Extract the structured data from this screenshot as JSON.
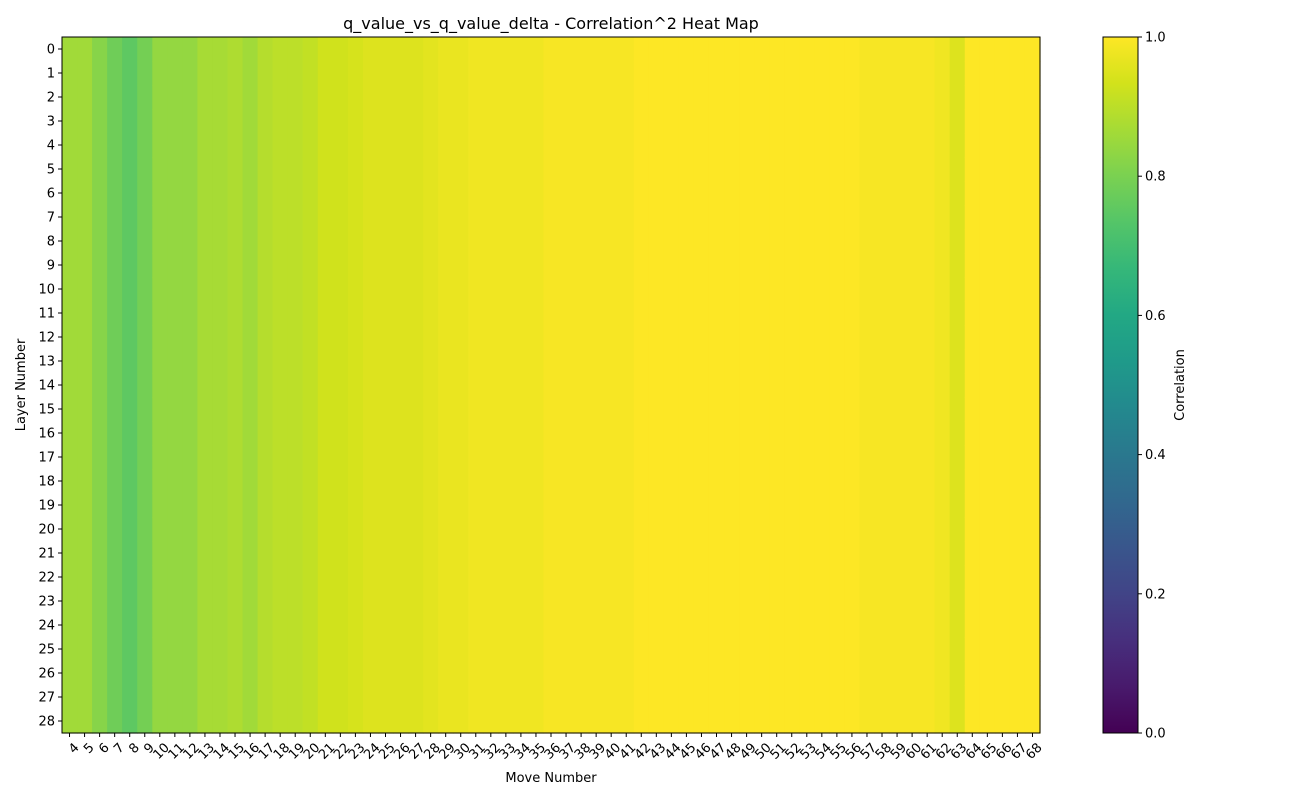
{
  "chart_data": {
    "type": "heatmap",
    "title": "q_value_vs_q_value_delta - Correlation^2 Heat Map",
    "xlabel": "Move Number",
    "ylabel": "Layer Number",
    "colorbar_label": "Correlation",
    "colormap": "viridis",
    "color_range": [
      0,
      1
    ],
    "colorbar_ticks": [
      "0.0",
      "0.2",
      "0.4",
      "0.6",
      "0.8",
      "1.0"
    ],
    "x_start": 4,
    "x_end": 68,
    "y_start": 0,
    "y_end": 28,
    "values_by_move": [
      0.86,
      0.86,
      0.82,
      0.78,
      0.75,
      0.79,
      0.84,
      0.84,
      0.84,
      0.87,
      0.87,
      0.88,
      0.86,
      0.89,
      0.9,
      0.9,
      0.91,
      0.93,
      0.93,
      0.94,
      0.95,
      0.95,
      0.95,
      0.95,
      0.96,
      0.97,
      0.97,
      0.98,
      0.98,
      0.98,
      0.98,
      0.98,
      0.99,
      0.99,
      0.99,
      0.99,
      0.99,
      0.99,
      1.0,
      1.0,
      1.0,
      1.0,
      1.0,
      1.0,
      1.0,
      1.0,
      1.0,
      1.0,
      1.0,
      1.0,
      1.0,
      1.0,
      1.0,
      0.99,
      0.99,
      0.99,
      0.99,
      0.99,
      0.98,
      0.95,
      1.0,
      1.0,
      1.0,
      1.0,
      1.0
    ],
    "note_rows": "all layers share the same value per move"
  }
}
